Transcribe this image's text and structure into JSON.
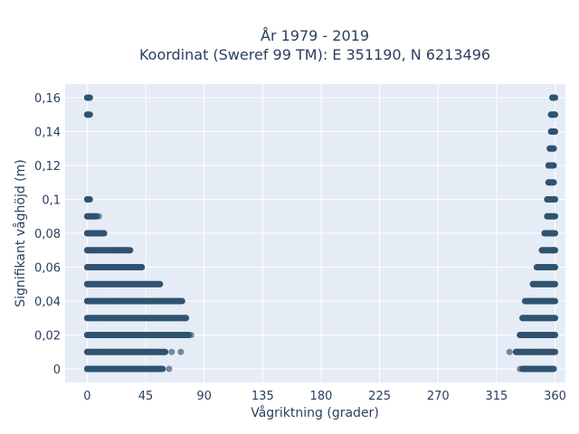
{
  "chart_data": {
    "type": "scatter",
    "title_line1": "År 1979 - 2019",
    "title_line2": "Koordinat (Sweref 99 TM): E 351190, N 6213496",
    "xlabel": "Vågriktning (grader)",
    "ylabel": "Signifikant våghöjd (m)",
    "xlim": [
      -17,
      368
    ],
    "ylim": [
      -0.008,
      0.168
    ],
    "x_ticks": [
      0,
      45,
      90,
      135,
      180,
      225,
      270,
      315,
      360
    ],
    "x_tick_labels": [
      "0",
      "45",
      "90",
      "135",
      "180",
      "225",
      "270",
      "315",
      "360"
    ],
    "y_ticks": [
      0,
      0.02,
      0.04,
      0.06,
      0.08,
      0.1,
      0.12,
      0.14,
      0.16
    ],
    "y_tick_labels": [
      "0",
      "0,02",
      "0,04",
      "0,06",
      "0,08",
      "0,1",
      "0,12",
      "0,14",
      "0,16"
    ],
    "grid": true,
    "marker_color": "#2f5470",
    "plot_bg": "#e5ecf6",
    "grid_color": "#ffffff",
    "series": [
      {
        "segments": [
          {
            "y": 0.16,
            "x": [
              0,
              2
            ]
          },
          {
            "y": 0.15,
            "x": [
              0,
              2
            ]
          },
          {
            "y": 0.1,
            "x": [
              0,
              2
            ]
          },
          {
            "y": 0.09,
            "x": [
              0,
              7
            ]
          },
          {
            "y": 0.08,
            "x": [
              0,
              13
            ]
          },
          {
            "y": 0.07,
            "x": [
              0,
              33
            ]
          },
          {
            "y": 0.06,
            "x": [
              0,
              42
            ]
          },
          {
            "y": 0.05,
            "x": [
              0,
              56
            ]
          },
          {
            "y": 0.04,
            "x": [
              0,
              73
            ]
          },
          {
            "y": 0.03,
            "x": [
              0,
              76
            ]
          },
          {
            "y": 0.02,
            "x": [
              0,
              78
            ]
          },
          {
            "y": 0.01,
            "x": [
              0,
              60
            ]
          },
          {
            "y": 0.0,
            "x": [
              0,
              58
            ]
          },
          {
            "y": 0.16,
            "x": [
              358,
              360
            ]
          },
          {
            "y": 0.15,
            "x": [
              357,
              360
            ]
          },
          {
            "y": 0.14,
            "x": [
              357,
              360
            ]
          },
          {
            "y": 0.13,
            "x": [
              356,
              359
            ]
          },
          {
            "y": 0.12,
            "x": [
              355,
              359
            ]
          },
          {
            "y": 0.11,
            "x": [
              355,
              359
            ]
          },
          {
            "y": 0.1,
            "x": [
              354,
              360
            ]
          },
          {
            "y": 0.09,
            "x": [
              354,
              360
            ]
          },
          {
            "y": 0.08,
            "x": [
              352,
              360
            ]
          },
          {
            "y": 0.07,
            "x": [
              350,
              360
            ]
          },
          {
            "y": 0.06,
            "x": [
              346,
              360
            ]
          },
          {
            "y": 0.05,
            "x": [
              343,
              360
            ]
          },
          {
            "y": 0.04,
            "x": [
              337,
              360
            ]
          },
          {
            "y": 0.03,
            "x": [
              335,
              360
            ]
          },
          {
            "y": 0.02,
            "x": [
              333,
              360
            ]
          },
          {
            "y": 0.01,
            "x": [
              330,
              360
            ]
          },
          {
            "y": 0.0,
            "x": [
              335,
              359
            ]
          }
        ],
        "outliers": [
          {
            "x": 65,
            "y": 0.01
          },
          {
            "x": 72,
            "y": 0.01
          },
          {
            "x": 80,
            "y": 0.02
          },
          {
            "x": 63,
            "y": 0.0
          },
          {
            "x": 9,
            "y": 0.09
          },
          {
            "x": 325,
            "y": 0.01
          },
          {
            "x": 333,
            "y": 0.0
          }
        ]
      }
    ]
  }
}
